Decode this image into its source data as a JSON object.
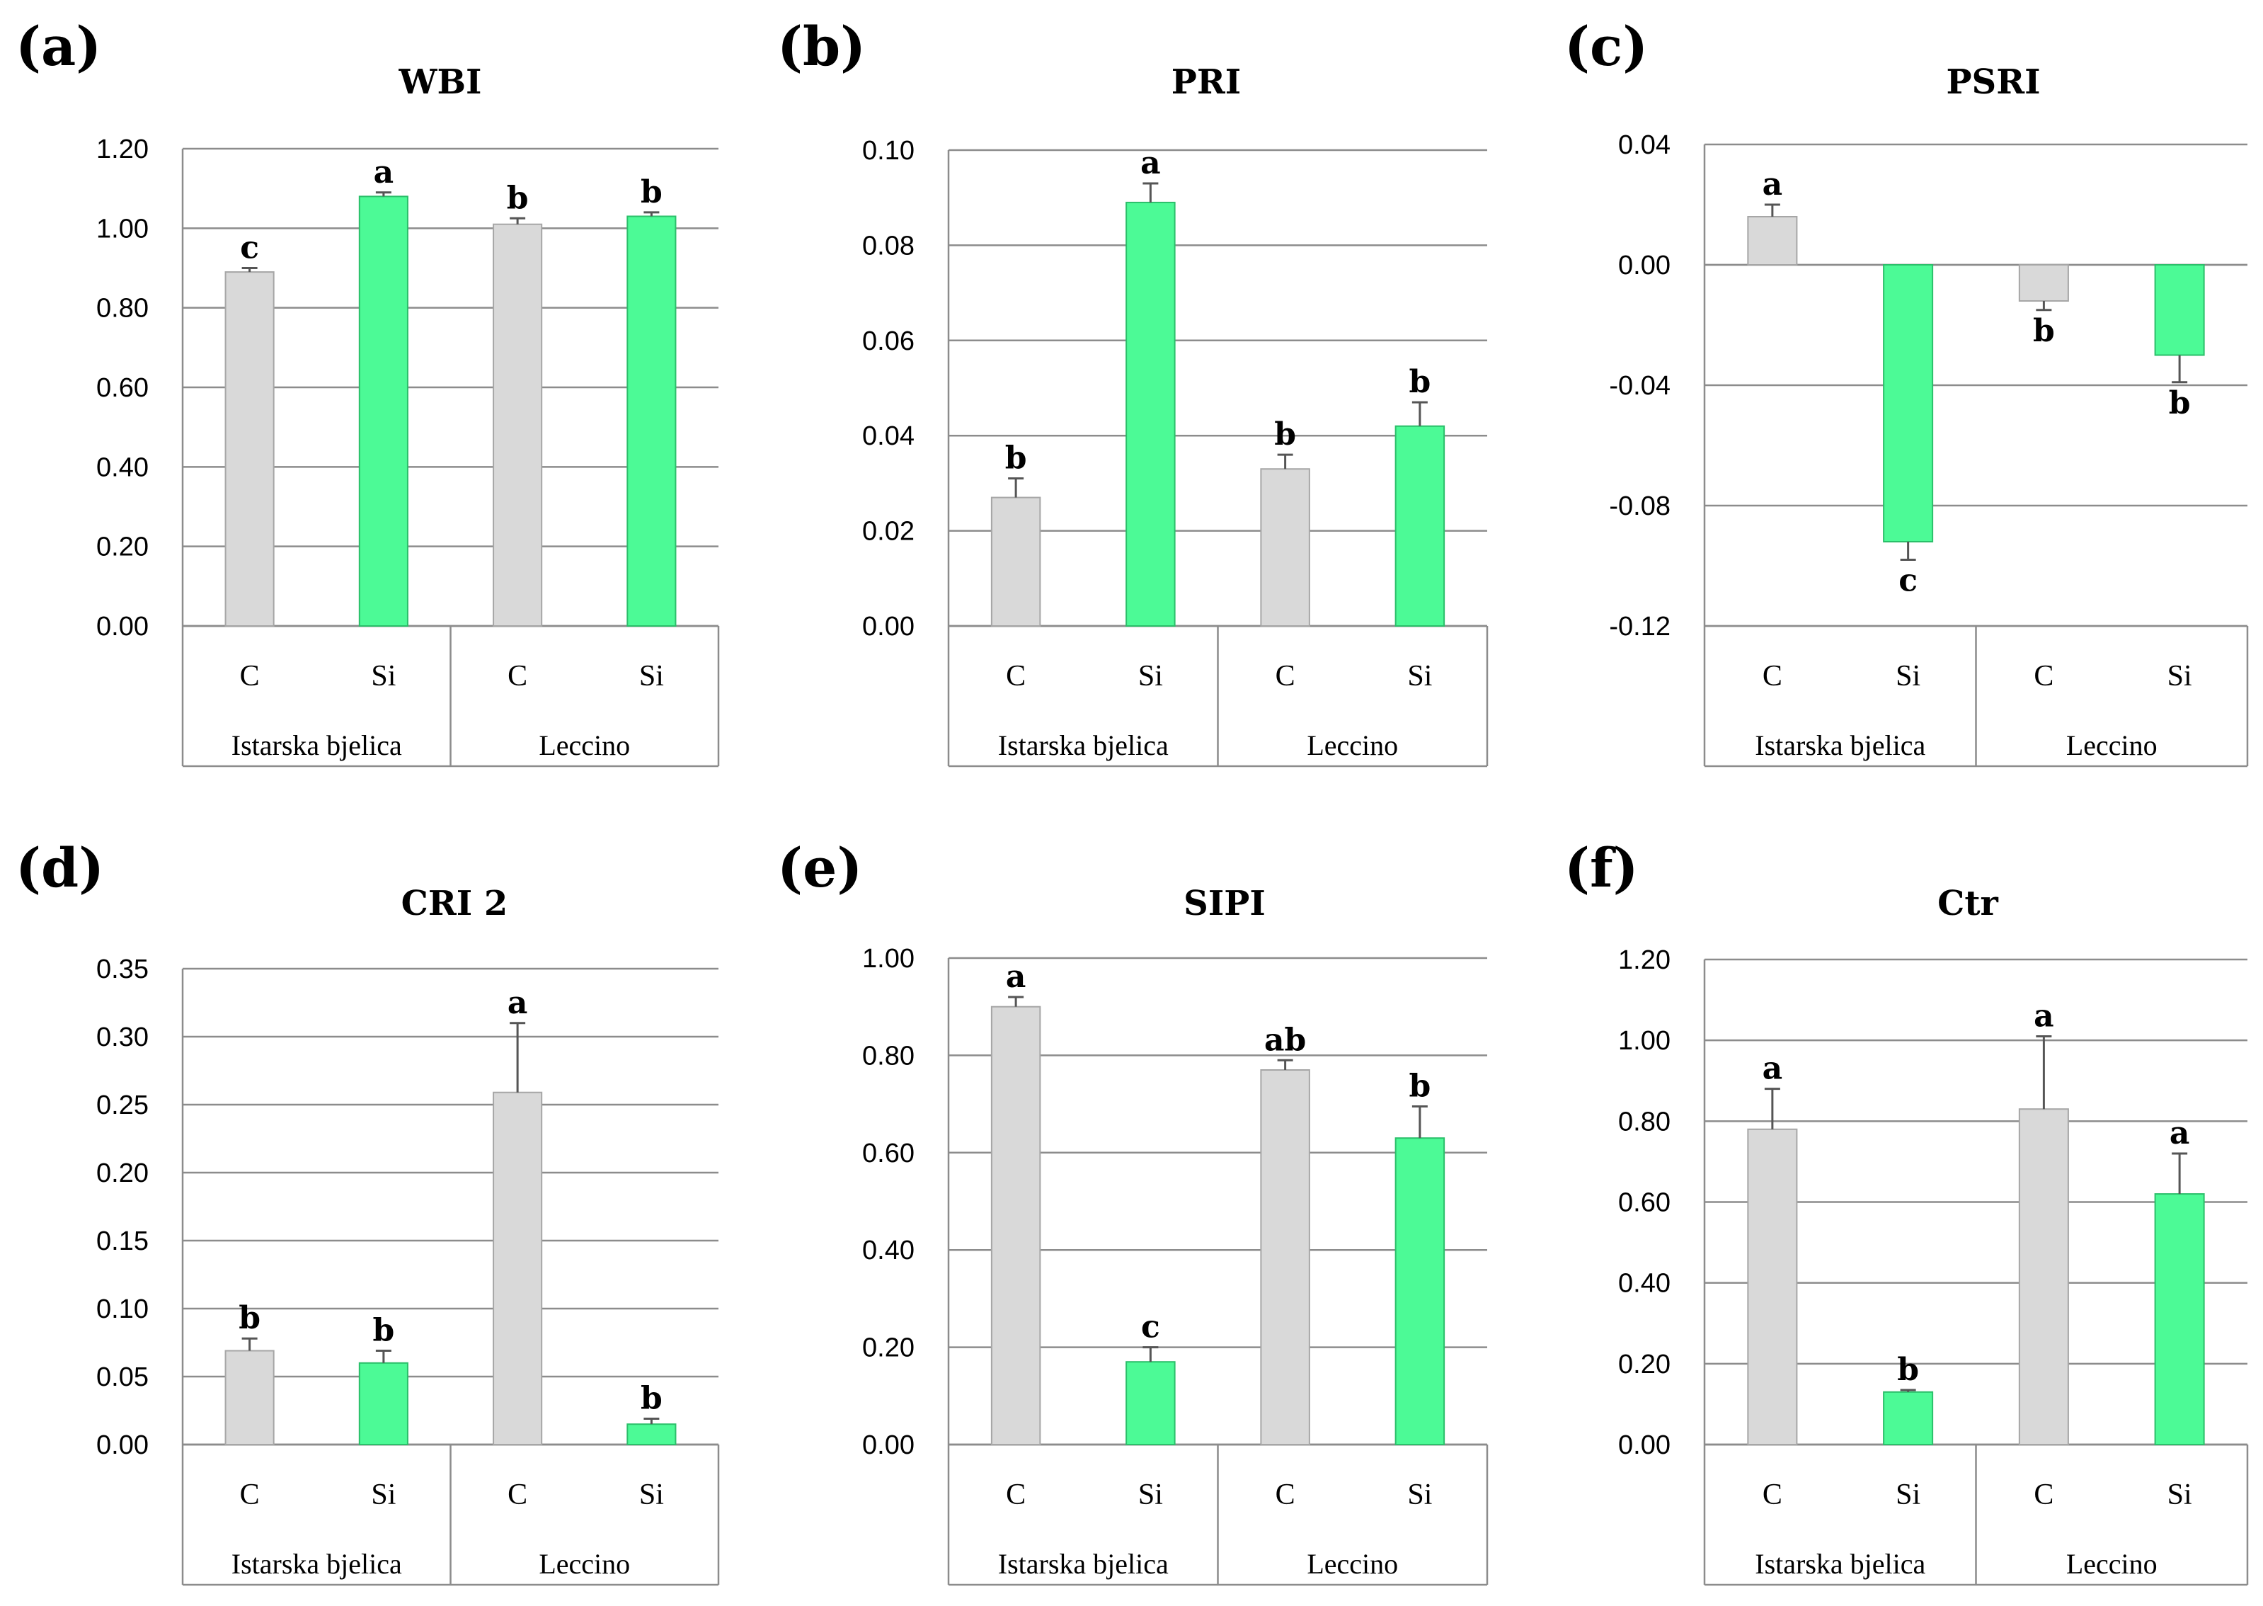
{
  "chart_data": [
    {
      "panel": "(a)",
      "title": "WBI",
      "type": "bar",
      "groups": [
        "Istarska bjelica",
        "Leccino"
      ],
      "categories": [
        "C",
        "Si",
        "C",
        "Si"
      ],
      "values": [
        0.89,
        1.08,
        1.01,
        1.03
      ],
      "errors": [
        0.01,
        0.01,
        0.015,
        0.01
      ],
      "significance": [
        "c",
        "a",
        "b",
        "b"
      ],
      "ylim": [
        0,
        1.2
      ],
      "yticks": [
        0.0,
        0.2,
        0.4,
        0.6,
        0.8,
        1.0,
        1.2
      ],
      "ytick_labels": [
        "0.00",
        "0.20",
        "0.40",
        "0.60",
        "0.80",
        "1.00",
        "1.20"
      ]
    },
    {
      "panel": "(b)",
      "title": "PRI",
      "type": "bar",
      "groups": [
        "Istarska bjelica",
        "Leccino"
      ],
      "categories": [
        "C",
        "Si",
        "C",
        "Si"
      ],
      "values": [
        0.027,
        0.089,
        0.033,
        0.042
      ],
      "errors": [
        0.004,
        0.004,
        0.003,
        0.005
      ],
      "significance": [
        "b",
        "a",
        "b",
        "b"
      ],
      "ylim": [
        0,
        0.1
      ],
      "yticks": [
        0.0,
        0.02,
        0.04,
        0.06,
        0.08,
        0.1
      ],
      "ytick_labels": [
        "0.00",
        "0.02",
        "0.04",
        "0.06",
        "0.08",
        "0.10"
      ]
    },
    {
      "panel": "(c)",
      "title": "PSRI",
      "type": "bar",
      "groups": [
        "Istarska bjelica",
        "Leccino"
      ],
      "categories": [
        "C",
        "Si",
        "C",
        "Si"
      ],
      "values": [
        0.016,
        -0.092,
        -0.012,
        -0.03
      ],
      "errors": [
        0.004,
        0.006,
        0.003,
        0.009
      ],
      "significance": [
        "a",
        "c",
        "b",
        "b"
      ],
      "ylim": [
        -0.12,
        0.04
      ],
      "yticks": [
        -0.12,
        -0.08,
        -0.04,
        0.0,
        0.04
      ],
      "ytick_labels": [
        "-0.12",
        "-0.08",
        "-0.04",
        "0.00",
        "0.04"
      ]
    },
    {
      "panel": "(d)",
      "title": "CRI 2",
      "type": "bar",
      "groups": [
        "Istarska bjelica",
        "Leccino"
      ],
      "categories": [
        "C",
        "Si",
        "C",
        "Si"
      ],
      "values": [
        0.069,
        0.06,
        0.259,
        0.015
      ],
      "errors": [
        0.009,
        0.009,
        0.051,
        0.004
      ],
      "significance": [
        "b",
        "b",
        "a",
        "b"
      ],
      "ylim": [
        0,
        0.35
      ],
      "yticks": [
        0.0,
        0.05,
        0.1,
        0.15,
        0.2,
        0.25,
        0.3,
        0.35
      ],
      "ytick_labels": [
        "0.00",
        "0.05",
        "0.10",
        "0.15",
        "0.20",
        "0.25",
        "0.30",
        "0.35"
      ]
    },
    {
      "panel": "(e)",
      "title": "SIPI",
      "type": "bar",
      "groups": [
        "Istarska bjelica",
        "Leccino"
      ],
      "categories": [
        "C",
        "Si",
        "C",
        "Si"
      ],
      "values": [
        0.9,
        0.17,
        0.77,
        0.63
      ],
      "errors": [
        0.02,
        0.03,
        0.02,
        0.065
      ],
      "significance": [
        "a",
        "c",
        "ab",
        "b"
      ],
      "ylim": [
        0,
        1.0
      ],
      "yticks": [
        0.0,
        0.2,
        0.4,
        0.6,
        0.8,
        1.0
      ],
      "ytick_labels": [
        "0.00",
        "0.20",
        "0.40",
        "0.60",
        "0.80",
        "1.00"
      ]
    },
    {
      "panel": "(f)",
      "title": "Ctr",
      "type": "bar",
      "groups": [
        "Istarska bjelica",
        "Leccino"
      ],
      "categories": [
        "C",
        "Si",
        "C",
        "Si"
      ],
      "values": [
        0.78,
        0.13,
        0.83,
        0.62
      ],
      "errors": [
        0.1,
        0.005,
        0.18,
        0.1
      ],
      "significance": [
        "a",
        "b",
        "a",
        "a"
      ],
      "ylim": [
        0,
        1.2
      ],
      "yticks": [
        0.0,
        0.2,
        0.4,
        0.6,
        0.8,
        1.0,
        1.2
      ],
      "ytick_labels": [
        "0.00",
        "0.20",
        "0.40",
        "0.60",
        "0.80",
        "1.00",
        "1.20"
      ]
    }
  ],
  "colors": {
    "control": "#d9d9d9",
    "silicon": "#4cfa96",
    "control_edge": "#a6a6a6",
    "silicon_edge": "#2bbf6a"
  }
}
